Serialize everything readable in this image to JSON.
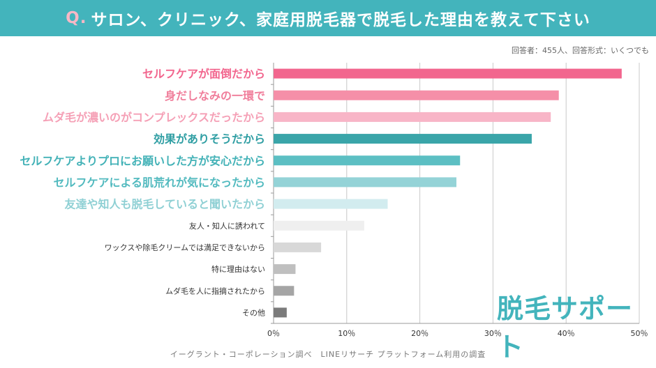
{
  "header": {
    "q": "Q.",
    "title": "サロン、クリニック、家庭用脱毛器で脱毛した理由を教えて下さい"
  },
  "respondents": "回答者：455人、回答形式：いくつでも",
  "source": "イーグラント・コーポレーション調べ　LINEリサーチ プラットフォーム利用の調査",
  "logo": "脱毛サポート",
  "chart_data": {
    "type": "bar",
    "orientation": "horizontal",
    "categories": [
      "セルフケアが面倒だから",
      "身だしなみの一環で",
      "ムダ毛が濃いのがコンプレックスだったから",
      "効果がありそうだから",
      "セルフケアよりプロにお願いした方が安心だから",
      "セルフケアによる肌荒れが気になったから",
      "友達や知人も脱毛していると聞いたから",
      "友人・知人に誘われて",
      "ワックスや除毛クリームでは満足できないから",
      "特に理由はない",
      "ムダ毛を人に指摘されたから",
      "その他"
    ],
    "values": [
      47.6,
      39.0,
      37.9,
      35.3,
      25.5,
      25.0,
      15.6,
      12.4,
      6.5,
      3.0,
      2.8,
      1.8
    ],
    "bar_colors": [
      "#f2668e",
      "#f58fa8",
      "#f8b5c7",
      "#3aa5a9",
      "#5cbfc3",
      "#94d3d7",
      "#d2ecef",
      "#efefef",
      "#d8d8d8",
      "#bfbfbf",
      "#a5a5a5",
      "#7b7b7b"
    ],
    "label_colors": [
      "#f2668e",
      "#f07e9b",
      "#f5a0b6",
      "#2f9ea3",
      "#43b2b7",
      "#52babf",
      "#8fd0d4",
      "#333333",
      "#333333",
      "#333333",
      "#333333",
      "#333333"
    ],
    "xlim": [
      0,
      50
    ],
    "xticks": [
      "0％",
      "10％",
      "20％",
      "30％",
      "40％",
      "50％"
    ],
    "grid": true
  }
}
